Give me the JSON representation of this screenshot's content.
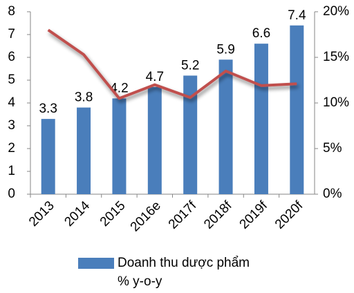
{
  "chart_data": {
    "type": "bar_line",
    "categories": [
      "2013",
      "2014",
      "2015",
      "2016e",
      "2017f",
      "2018f",
      "2019f",
      "2020f"
    ],
    "series": [
      {
        "name": "Doanh thu dược phẩm",
        "color": "#4a7ebb",
        "values": [
          3.3,
          3.8,
          4.2,
          4.7,
          5.2,
          5.9,
          6.6,
          7.4
        ]
      },
      {
        "name": "% y-o-y",
        "color": "#c0504d",
        "axis": "y2",
        "values": [
          18,
          15.3,
          10.5,
          12,
          10.6,
          13.5,
          11.9,
          12.1
        ]
      }
    ],
    "ylim": [
      0,
      8
    ],
    "yticks": [
      0,
      1,
      2,
      3,
      4,
      5,
      6,
      7,
      8
    ],
    "y2lim": [
      0,
      20
    ],
    "y2ticks": [
      {
        "value": 0,
        "label": "0%"
      },
      {
        "value": 5,
        "label": "5%"
      },
      {
        "value": 10,
        "label": "10%"
      },
      {
        "value": 15,
        "label": "15%"
      },
      {
        "value": 20,
        "label": "20%"
      }
    ],
    "legend": "bottom"
  }
}
